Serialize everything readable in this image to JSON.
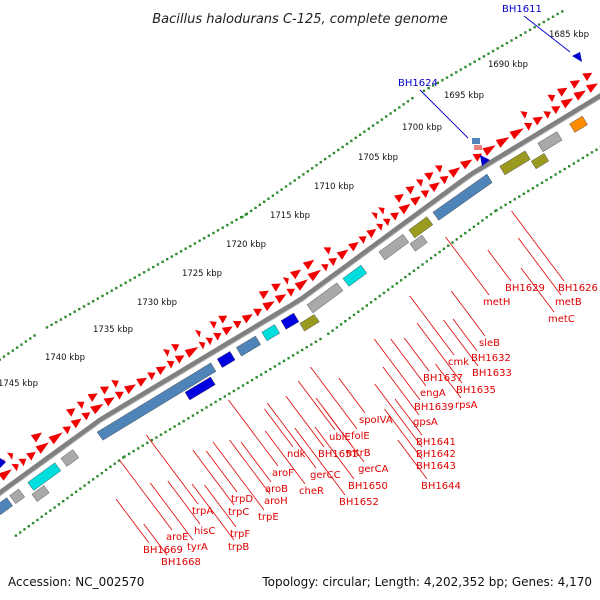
{
  "title": "Bacillus halodurans C-125, complete genome",
  "footer": {
    "accession": "Accession: NC_002570",
    "stats": "Topology: circular; Length: 4,202,352 bp; Genes: 4,170"
  },
  "kbp_labels": [
    "1685 kbp",
    "1690 kbp",
    "1695 kbp",
    "1700 kbp",
    "1705 kbp",
    "1710 kbp",
    "1715 kbp",
    "1720 kbp",
    "1725 kbp",
    "1730 kbp",
    "1735 kbp",
    "1740 kbp",
    "1745 kbp"
  ],
  "top_labels": [
    "BH1611",
    "BH1624"
  ],
  "gene_labels": [
    "BH1626",
    "metB",
    "metC",
    "BH1629",
    "metH",
    "sleB",
    "BH1632",
    "cmk",
    "BH1633",
    "BH1637",
    "BH1635",
    "engA",
    "rpsA",
    "BH1639",
    "gpsA",
    "spoIVA",
    "folE",
    "ubiE",
    "BH1641",
    "BH1642",
    "BH1643",
    "mtrB",
    "gerCA",
    "BH1651",
    "ndk",
    "gerCC",
    "BH1650",
    "BH1644",
    "aroF",
    "cheR",
    "aroB",
    "BH1652",
    "aroH",
    "trpD",
    "trpE",
    "trpC",
    "trpF",
    "trpA",
    "trpB",
    "hisC",
    "aroE",
    "tyrA",
    "BH1669",
    "BH1668"
  ],
  "colors": {
    "gene_red": "#f20000",
    "label_red": "#e00000",
    "label_blue": "#0000cc",
    "backbone": "#808080",
    "tick_green": "#2e8b2e",
    "cds_steelblue": "#4f84b8",
    "cds_blue": "#0000e0",
    "cds_cyan": "#00dddd",
    "cds_olive": "#9a9a20",
    "cds_grey": "#a9a9a9",
    "cds_orange": "#ff8c00"
  }
}
